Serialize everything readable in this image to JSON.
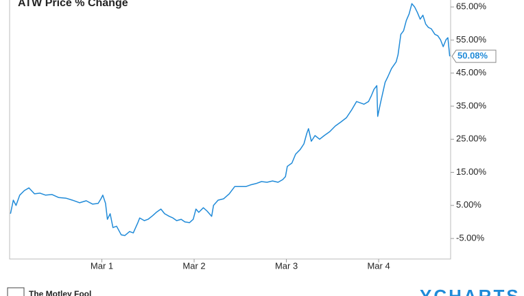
{
  "chart_data": {
    "type": "line",
    "title": "ATW Price % Change",
    "color": "#1f8ad8",
    "grid": false,
    "xlim": [
      -1.0,
      3.78
    ],
    "xticks": [
      {
        "value": 0,
        "label": "Mar 1"
      },
      {
        "value": 1,
        "label": "Mar 2"
      },
      {
        "value": 2,
        "label": "Mar 3"
      },
      {
        "value": 3,
        "label": "Mar 4"
      }
    ],
    "ylim": [
      -11.2,
      67.1
    ],
    "yticks": [
      {
        "value": -5,
        "label": "-5.00%"
      },
      {
        "value": 5,
        "label": "5.00%"
      },
      {
        "value": 15,
        "label": "15.00%"
      },
      {
        "value": 25,
        "label": "25.00%"
      },
      {
        "value": 35,
        "label": "35.00%"
      },
      {
        "value": 45,
        "label": "45.00%"
      },
      {
        "value": 55,
        "label": "55.00%"
      },
      {
        "value": 65,
        "label": "65.00%"
      }
    ],
    "x": [
      -0.99,
      -0.96,
      -0.93,
      -0.89,
      -0.84,
      -0.79,
      -0.73,
      -0.67,
      -0.61,
      -0.54,
      -0.47,
      -0.39,
      -0.32,
      -0.24,
      -0.17,
      -0.1,
      -0.04,
      -0.01,
      0.01,
      0.04,
      0.06,
      0.09,
      0.12,
      0.16,
      0.21,
      0.25,
      0.3,
      0.34,
      0.39,
      0.41,
      0.46,
      0.5,
      0.55,
      0.59,
      0.64,
      0.68,
      0.73,
      0.77,
      0.81,
      0.86,
      0.9,
      0.95,
      0.99,
      1.02,
      1.05,
      1.1,
      1.14,
      1.19,
      1.21,
      1.26,
      1.32,
      1.38,
      1.44,
      1.5,
      1.56,
      1.61,
      1.67,
      1.73,
      1.79,
      1.85,
      1.91,
      1.96,
      1.99,
      2.01,
      2.06,
      2.1,
      2.15,
      2.19,
      2.22,
      2.24,
      2.27,
      2.31,
      2.36,
      2.41,
      2.47,
      2.53,
      2.59,
      2.65,
      2.71,
      2.76,
      2.8,
      2.84,
      2.89,
      2.92,
      2.95,
      2.98,
      2.99,
      3.02,
      3.07,
      3.1,
      3.14,
      3.19,
      3.21,
      3.24,
      3.27,
      3.3,
      3.33,
      3.36,
      3.39,
      3.42,
      3.45,
      3.48,
      3.51,
      3.54,
      3.57,
      3.61,
      3.64,
      3.67,
      3.7,
      3.73,
      3.75,
      3.77
    ],
    "values": [
      2.5,
      6.6,
      5.0,
      8.1,
      9.5,
      10.3,
      8.5,
      8.7,
      8.1,
      8.3,
      7.4,
      7.2,
      6.6,
      5.8,
      6.4,
      5.4,
      5.6,
      7.0,
      8.1,
      5.6,
      0.8,
      2.5,
      -1.7,
      -1.3,
      -3.9,
      -4.1,
      -2.9,
      -3.3,
      -0.2,
      1.2,
      0.4,
      0.8,
      1.9,
      2.9,
      3.9,
      2.5,
      1.7,
      1.2,
      0.4,
      0.8,
      0.0,
      -0.2,
      0.8,
      3.9,
      2.9,
      4.3,
      3.3,
      1.7,
      5.0,
      6.6,
      7.0,
      8.5,
      10.7,
      10.7,
      10.7,
      11.2,
      11.6,
      12.2,
      12.0,
      12.4,
      12.0,
      12.8,
      13.7,
      16.8,
      17.8,
      20.5,
      21.9,
      23.6,
      26.7,
      28.2,
      24.4,
      26.1,
      25.0,
      26.1,
      27.3,
      29.0,
      30.2,
      31.5,
      34.0,
      36.4,
      36.0,
      35.6,
      36.4,
      38.1,
      40.1,
      41.2,
      31.9,
      36.0,
      42.2,
      43.9,
      46.4,
      48.4,
      50.5,
      56.7,
      57.8,
      60.9,
      62.9,
      66.0,
      65.0,
      63.3,
      61.3,
      62.5,
      59.8,
      58.8,
      58.4,
      56.7,
      56.3,
      55.1,
      53.0,
      55.1,
      55.7,
      50.08
    ],
    "end_label": "50.08%"
  },
  "footer": {
    "brand": "The Motley Fool",
    "source": "YCHARTS"
  }
}
